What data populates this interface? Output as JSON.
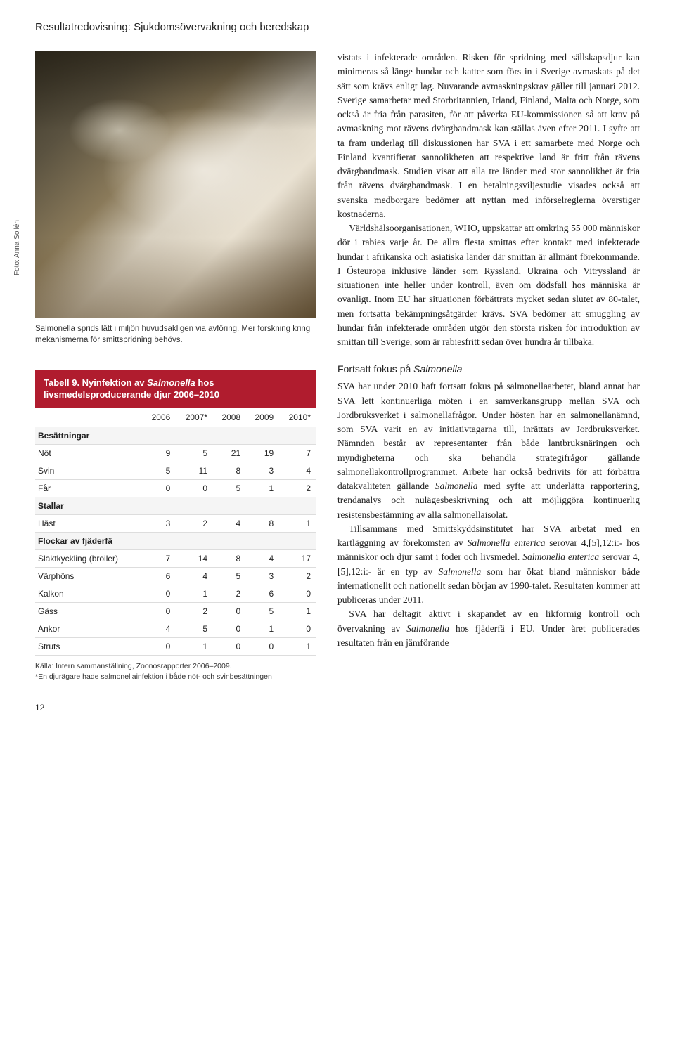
{
  "header": {
    "section_title": "Resultatredovisning: Sjukdomsövervakning och beredskap"
  },
  "photo": {
    "credit": "Foto: Anna Sollén",
    "caption": "Salmonella sprids lätt i miljön huvudsakligen via avföring. Mer forskning kring mekanismerna för smittspridning behövs."
  },
  "table": {
    "title_prefix": "Tabell 9. Nyinfektion av ",
    "title_italic": "Salmonella",
    "title_suffix": " hos livsmedelsproducerande djur 2006–2010",
    "columns": [
      "",
      "2006",
      "2007*",
      "2008",
      "2009",
      "2010*"
    ],
    "sections": [
      {
        "label": "Besättningar",
        "rows": [
          {
            "label": "Nöt",
            "vals": [
              9,
              5,
              21,
              19,
              7
            ]
          },
          {
            "label": "Svin",
            "vals": [
              5,
              11,
              8,
              3,
              4
            ]
          },
          {
            "label": "Får",
            "vals": [
              0,
              0,
              5,
              1,
              2
            ]
          }
        ]
      },
      {
        "label": "Stallar",
        "rows": [
          {
            "label": "Häst",
            "vals": [
              3,
              2,
              4,
              8,
              1
            ]
          }
        ]
      },
      {
        "label": "Flockar av fjäderfä",
        "rows": [
          {
            "label": "Slaktkyckling (broiler)",
            "vals": [
              7,
              14,
              8,
              4,
              17
            ]
          },
          {
            "label": "Värphöns",
            "vals": [
              6,
              4,
              5,
              3,
              2
            ]
          },
          {
            "label": "Kalkon",
            "vals": [
              0,
              1,
              2,
              6,
              0
            ]
          },
          {
            "label": "Gäss",
            "vals": [
              0,
              2,
              0,
              5,
              1
            ]
          },
          {
            "label": "Ankor",
            "vals": [
              4,
              5,
              0,
              1,
              0
            ]
          },
          {
            "label": "Struts",
            "vals": [
              0,
              1,
              0,
              0,
              1
            ]
          }
        ]
      }
    ],
    "source": "Källa: Intern sammanställning, Zoonosrapporter 2006–2009.\n*En djurägare hade salmonellainfektion i både nöt- och svinbesättningen",
    "colors": {
      "header_bg": "#b01c2e",
      "header_text": "#ffffff",
      "border": "#dddddd"
    }
  },
  "body": {
    "p1": "vistats i infekterade områden. Risken för spridning med sällskapsdjur kan minimeras så länge hundar och katter som förs in i Sverige avmaskats på det sätt som krävs enligt lag. Nuvarande avmaskningskrav gäller till januari 2012. Sverige samarbetar med Storbritannien, Irland, Finland, Malta och Norge, som också är fria från parasiten, för att påverka EU-kommissionen så att krav på avmaskning mot rävens dvärgbandmask kan ställas även efter 2011. I syfte att ta fram underlag till diskussionen har SVA i ett samarbete med Norge och Finland kvantifierat sannolikheten att respektive land är fritt från rävens dvärgbandmask. Studien visar att alla tre länder med stor sannolikhet är fria från rävens dvärgbandmask. I en betalningsviljestudie visades också att svenska medborgare bedömer att nyttan med införselreglerna överstiger kostnaderna.",
    "p2": "Världshälsoorganisationen, WHO, uppskattar att omkring 55 000 människor dör i rabies varje år. De allra flesta smittas efter kontakt med infekterade hundar i afrikanska och asiatiska länder där smittan är allmänt förekommande. I Östeuropa inklusive länder som Ryssland, Ukraina och Vitryssland är situationen inte heller under kontroll, även om dödsfall hos människa är ovanligt. Inom EU har situationen förbättrats mycket sedan slutet av 80-talet, men fortsatta bekämpningsåtgärder krävs. SVA bedömer att smuggling av hundar från infekterade områden utgör den största risken för introduktion av smittan till Sverige, som är rabiesfritt sedan över hundra år tillbaka.",
    "subhead_prefix": "Fortsatt fokus på ",
    "subhead_italic": "Salmonella",
    "p3": "SVA har under 2010 haft fortsatt fokus på salmonellaarbetet, bland annat har SVA lett kontinuerliga möten i en samverkansgrupp mellan SVA och Jordbruksverket i salmonellafrågor. Under hösten har en salmonellanämnd, som SVA varit en av initiativtagarna till, inrättats av Jordbruksverket. Nämnden består av representanter från både lantbruksnäringen och myndigheterna och ska behandla strategifrågor gällande salmonellakontrollprogrammet. Arbete har också bedrivits för att förbättra datakvaliteten gällande <em>Salmonella</em> med syfte att underlätta rapportering, trendanalys och nulägesbeskrivning och att möjliggöra kontinuerlig resistensbestämning av alla salmonellaisolat.",
    "p4": "Tillsammans med Smittskyddsinstitutet har SVA arbetat med en kartläggning av förekomsten av <em>Salmonella enterica</em> serovar 4,[5],12:i:- hos människor och djur samt i foder och livsmedel. <em>Salmonella enterica</em> serovar 4,[5],12:i:- är en typ av <em>Salmonella</em> som har ökat bland människor både internationellt och nationellt sedan början av 1990-talet. Resultaten kommer att publiceras under 2011.",
    "p5": "SVA har deltagit aktivt i skapandet av en likformig kontroll och övervakning av <em>Salmonella</em> hos fjäderfä i EU. Under året publicerades resultaten från en jämförande"
  },
  "page_number": "12"
}
